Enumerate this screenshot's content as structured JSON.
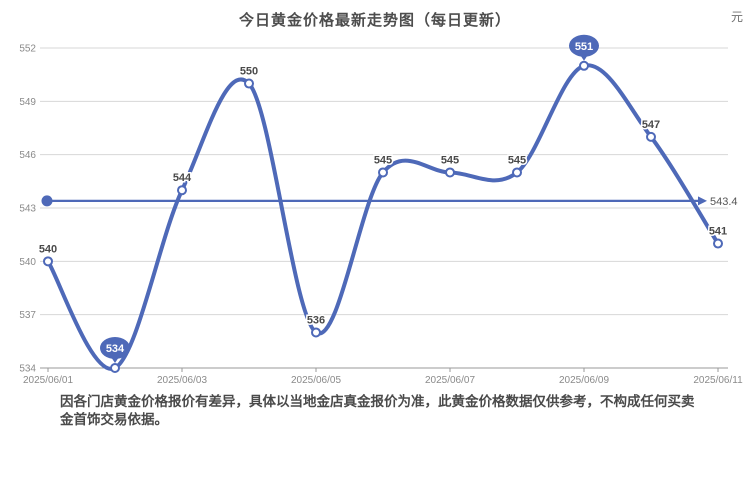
{
  "title": "今日黄金价格最新走势图（每日更新）",
  "unit_label": "元",
  "note": {
    "line1": "因各门店黄金价格报价有差异，具体以当地金店真金报价为准，此黄金价格数据仅供参考，不构成任何买卖",
    "line2": "金首饰交易依据。"
  },
  "colors": {
    "line": "#4e69b8",
    "grid": "#d7d7d7",
    "axis_line": "#9a9a9a",
    "axis_text": "#8a8a8a",
    "point_label": "#4a4a4a",
    "avg_label": "#555555",
    "bubble_text": "#ffffff",
    "background": "#ffffff"
  },
  "chart_data": {
    "type": "line",
    "smooth": true,
    "title": "今日黄金价格最新走势图（每日更新）",
    "ylabel_unit": "元",
    "num_points": 11,
    "values": [
      540,
      534,
      544,
      550,
      536,
      545,
      545,
      545,
      551,
      547,
      541
    ],
    "point_labels": [
      "540",
      "534",
      "544",
      "550",
      "536",
      "545",
      "545",
      "545",
      "551",
      "547",
      "541"
    ],
    "x_tick_labels": [
      "2025/06/01",
      "2025/06/03",
      "2025/06/05",
      "2025/06/07",
      "2025/06/09",
      "2025/06/11"
    ],
    "x_tick_indices": [
      0,
      2,
      4,
      6,
      8,
      10
    ],
    "average": 543.4,
    "average_label": "543.4",
    "min": 534,
    "max": 551,
    "min_index": 1,
    "max_index": 8,
    "ylim": [
      534,
      552
    ],
    "yticks": [
      552,
      549,
      546,
      543,
      540,
      537,
      534
    ],
    "grid": true,
    "legend": false
  }
}
